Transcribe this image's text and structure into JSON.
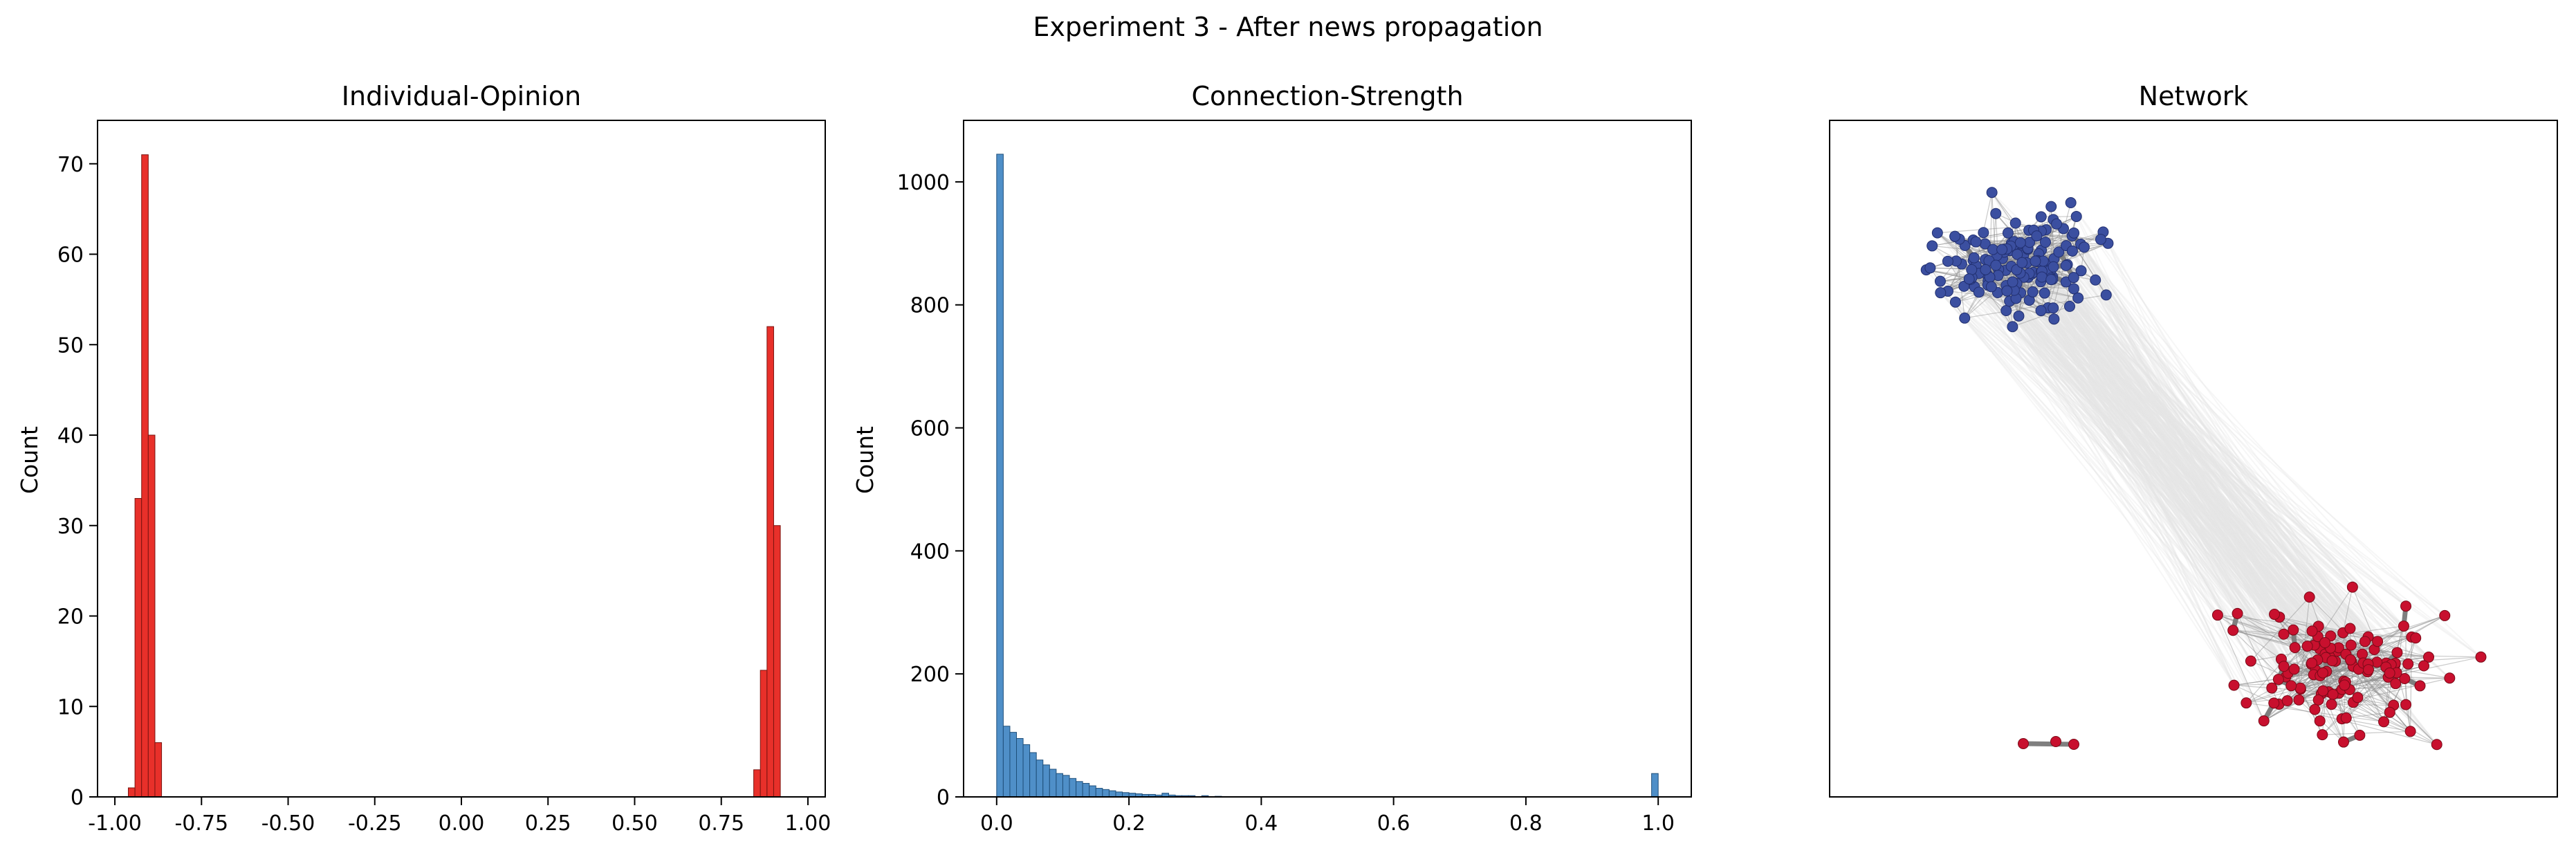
{
  "figure": {
    "suptitle": "Experiment 3 - After news propagation"
  },
  "colors": {
    "opinion_bar": "#e8302a",
    "opinion_edge": "#7a1410",
    "strength_bar": "#4f8fc8",
    "strength_edge": "#1f4f7a",
    "node_blue": "#3b4fa0",
    "node_red": "#c8102e",
    "edge_strong": "#7f7f7f",
    "edge_weak": "#dddddd"
  },
  "chart_data": [
    {
      "type": "bar",
      "subtype": "histogram",
      "title": "Individual-Opinion",
      "xlabel": "",
      "ylabel": "Count",
      "xlim": [
        -1.05,
        1.05
      ],
      "ylim": [
        0,
        74.8
      ],
      "xticks": [
        "-1.00",
        "-0.75",
        "-0.50",
        "-0.25",
        "0.00",
        "0.25",
        "0.50",
        "0.75",
        "1.00"
      ],
      "xtick_values": [
        -1.0,
        -0.75,
        -0.5,
        -0.25,
        0.0,
        0.25,
        0.5,
        0.75,
        1.0
      ],
      "yticks": [
        "0",
        "10",
        "20",
        "30",
        "40",
        "50",
        "60",
        "70"
      ],
      "ytick_values": [
        0,
        10,
        20,
        30,
        40,
        50,
        60,
        70
      ],
      "bin_width": 0.0192,
      "bins": [
        {
          "x": -0.9612,
          "count": 1
        },
        {
          "x": -0.942,
          "count": 33
        },
        {
          "x": -0.9228,
          "count": 71
        },
        {
          "x": -0.9036,
          "count": 40
        },
        {
          "x": -0.8844,
          "count": 6
        },
        {
          "x": 0.8436,
          "count": 3
        },
        {
          "x": 0.8628,
          "count": 14
        },
        {
          "x": 0.882,
          "count": 52
        },
        {
          "x": 0.9012,
          "count": 30
        }
      ]
    },
    {
      "type": "bar",
      "subtype": "histogram",
      "title": "Connection-Strength",
      "xlabel": "",
      "ylabel": "Count",
      "xlim": [
        -0.05,
        1.05
      ],
      "ylim": [
        0,
        1100
      ],
      "xticks": [
        "0.0",
        "0.2",
        "0.4",
        "0.6",
        "0.8",
        "1.0"
      ],
      "xtick_values": [
        0.0,
        0.2,
        0.4,
        0.6,
        0.8,
        1.0
      ],
      "yticks": [
        "0",
        "200",
        "400",
        "600",
        "800",
        "1000"
      ],
      "ytick_values": [
        0,
        200,
        400,
        600,
        800,
        1000
      ],
      "bin_width": 0.01,
      "bins": [
        {
          "x": 0.0,
          "count": 1045
        },
        {
          "x": 0.01,
          "count": 115
        },
        {
          "x": 0.02,
          "count": 105
        },
        {
          "x": 0.03,
          "count": 95
        },
        {
          "x": 0.04,
          "count": 85
        },
        {
          "x": 0.05,
          "count": 72
        },
        {
          "x": 0.06,
          "count": 60
        },
        {
          "x": 0.07,
          "count": 52
        },
        {
          "x": 0.08,
          "count": 45
        },
        {
          "x": 0.09,
          "count": 38
        },
        {
          "x": 0.1,
          "count": 35
        },
        {
          "x": 0.11,
          "count": 30
        },
        {
          "x": 0.12,
          "count": 25
        },
        {
          "x": 0.13,
          "count": 22
        },
        {
          "x": 0.14,
          "count": 18
        },
        {
          "x": 0.15,
          "count": 14
        },
        {
          "x": 0.16,
          "count": 12
        },
        {
          "x": 0.17,
          "count": 10
        },
        {
          "x": 0.18,
          "count": 8
        },
        {
          "x": 0.19,
          "count": 7
        },
        {
          "x": 0.2,
          "count": 6
        },
        {
          "x": 0.21,
          "count": 5
        },
        {
          "x": 0.22,
          "count": 4
        },
        {
          "x": 0.23,
          "count": 4
        },
        {
          "x": 0.24,
          "count": 3
        },
        {
          "x": 0.25,
          "count": 6
        },
        {
          "x": 0.26,
          "count": 3
        },
        {
          "x": 0.27,
          "count": 2
        },
        {
          "x": 0.28,
          "count": 2
        },
        {
          "x": 0.29,
          "count": 2
        },
        {
          "x": 0.31,
          "count": 2
        },
        {
          "x": 0.33,
          "count": 1
        },
        {
          "x": 0.99,
          "count": 38
        }
      ]
    },
    {
      "type": "scatter",
      "subtype": "network",
      "title": "Network",
      "clusters": [
        {
          "color_key": "node_blue",
          "approx_nodes": 150
        },
        {
          "color_key": "node_red",
          "approx_nodes": 120
        }
      ]
    }
  ]
}
